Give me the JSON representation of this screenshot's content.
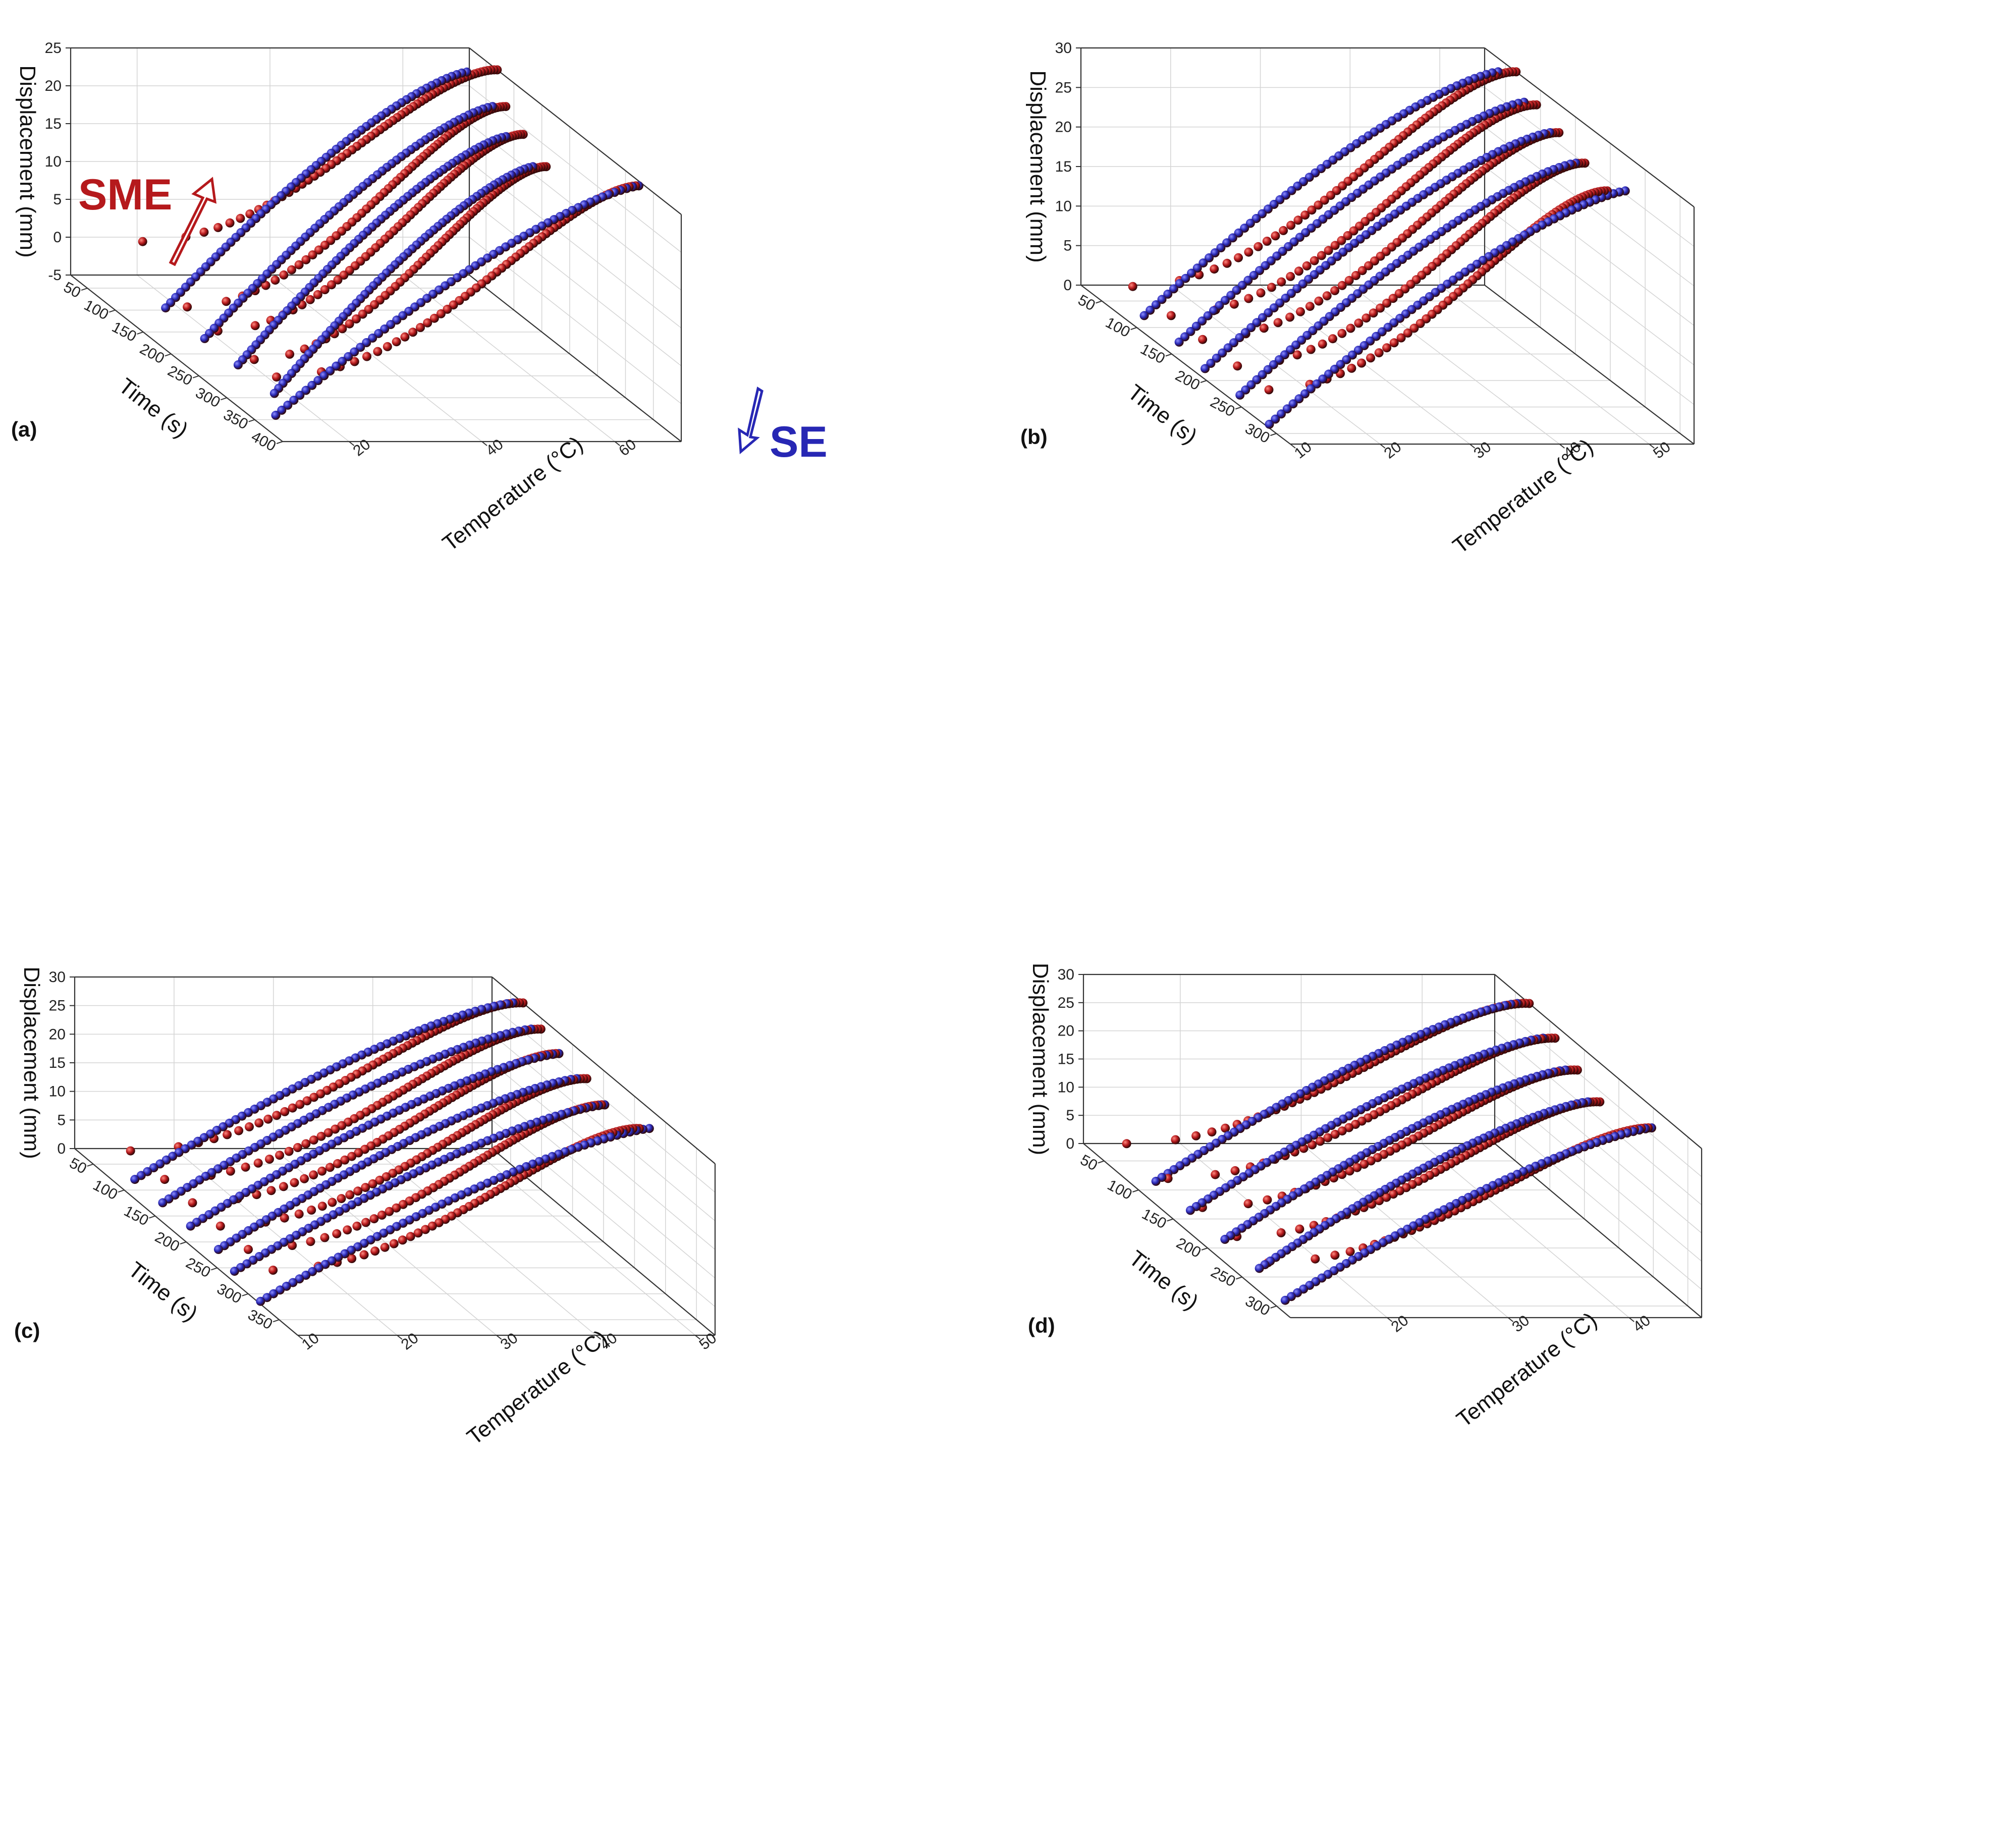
{
  "colors": {
    "sme": "#b5191c",
    "se": "#2727b4",
    "axis": "#222222",
    "grid": "#d4d4d4"
  },
  "chart_data": [
    {
      "type": "scatter",
      "panel_label": "(a)",
      "xlabel": "Time (s)",
      "ylabel": "Temperature (°C)",
      "zlabel": "Displacement (mm)",
      "xticks": [
        50,
        100,
        150,
        200,
        250,
        300,
        350,
        400
      ],
      "xlim": [
        20,
        400
      ],
      "yticks": [
        20,
        40,
        60
      ],
      "ylim": [
        10,
        70
      ],
      "zticks": [
        -5,
        0,
        5,
        10,
        15,
        20,
        25
      ],
      "zlim": [
        -5,
        25
      ],
      "annotations": [
        {
          "text": "SME",
          "color": "sme",
          "direction": "up"
        },
        {
          "text": "SE",
          "color": "se",
          "direction": "down"
        }
      ],
      "series": [
        {
          "name": "SME",
          "color": "sme",
          "cycles": [
            {
              "x": [
                30,
                70
              ],
              "y": [
                20,
                70
              ],
              "z": [
                0,
                25
              ]
            },
            {
              "x": [
                110,
                145
              ],
              "y": [
                20,
                65
              ],
              "z": [
                -4,
                24.5
              ]
            },
            {
              "x": [
                165,
                200
              ],
              "y": [
                20,
                63
              ],
              "z": [
                -4,
                24
              ]
            },
            {
              "x": [
                230,
                265
              ],
              "y": [
                20,
                61
              ],
              "z": [
                -4,
                23.5
              ]
            },
            {
              "x": [
                270,
                300
              ],
              "y": [
                20,
                72
              ],
              "z": [
                -4,
                23
              ]
            }
          ]
        },
        {
          "name": "SE",
          "color": "se",
          "cycles": [
            {
              "x": [
                75,
                95
              ],
              "y": [
                65,
                18
              ],
              "z": [
                25,
                -5
              ]
            },
            {
              "x": [
                145,
                165
              ],
              "y": [
                63,
                18
              ],
              "z": [
                24.5,
                -5
              ]
            },
            {
              "x": [
                205,
                225
              ],
              "y": [
                60,
                18
              ],
              "z": [
                24,
                -5
              ]
            },
            {
              "x": [
                265,
                290
              ],
              "y": [
                59,
                18
              ],
              "z": [
                23.5,
                -5
              ]
            },
            {
              "x": [
                300,
                340
              ],
              "y": [
                72,
                14
              ],
              "z": [
                23,
                -5
              ]
            }
          ]
        }
      ]
    },
    {
      "type": "scatter",
      "panel_label": "(b)",
      "xlabel": "Time (s)",
      "ylabel": "Temperature (°C)",
      "zlabel": "Displacement (mm)",
      "xticks": [
        50,
        100,
        150,
        200,
        250,
        300
      ],
      "xlim": [
        20,
        320
      ],
      "yticks": [
        10,
        20,
        30,
        40,
        50
      ],
      "ylim": [
        10,
        55
      ],
      "zticks": [
        0,
        5,
        10,
        15,
        20,
        25,
        30
      ],
      "zlim": [
        0,
        30
      ],
      "series": [
        {
          "name": "SME",
          "color": "sme",
          "cycles": [
            {
              "x": [
                30,
                65
              ],
              "y": [
                15,
                55
              ],
              "z": [
                0.5,
                30
              ]
            },
            {
              "x": [
                85,
                120
              ],
              "y": [
                15,
                53
              ],
              "z": [
                0.5,
                29.5
              ]
            },
            {
              "x": [
                130,
                165
              ],
              "y": [
                15,
                52
              ],
              "z": [
                0.5,
                29
              ]
            },
            {
              "x": [
                180,
                215
              ],
              "y": [
                15,
                51
              ],
              "z": [
                0.5,
                28.5
              ]
            },
            {
              "x": [
                225,
                260
              ],
              "y": [
                15,
                50
              ],
              "z": [
                0.5,
                28
              ]
            }
          ]
        },
        {
          "name": "SE",
          "color": "se",
          "cycles": [
            {
              "x": [
                65,
                85
              ],
              "y": [
                53,
                12
              ],
              "z": [
                30,
                0.5
              ]
            },
            {
              "x": [
                115,
                135
              ],
              "y": [
                52,
                12
              ],
              "z": [
                29.5,
                0.5
              ]
            },
            {
              "x": [
                165,
                185
              ],
              "y": [
                51,
                11
              ],
              "z": [
                29,
                0.5
              ]
            },
            {
              "x": [
                215,
                235
              ],
              "y": [
                50,
                11
              ],
              "z": [
                28.5,
                0.5
              ]
            },
            {
              "x": [
                260,
                290
              ],
              "y": [
                52,
                10
              ],
              "z": [
                28,
                0.5
              ]
            }
          ]
        }
      ]
    },
    {
      "type": "scatter",
      "panel_label": "(c)",
      "xlabel": "Time (s)",
      "ylabel": "Temperature (°C)",
      "zlabel": "Displacement (mm)",
      "xticks": [
        50,
        100,
        150,
        200,
        250,
        300,
        350
      ],
      "xlim": [
        20,
        380
      ],
      "yticks": [
        10,
        20,
        30,
        40,
        50
      ],
      "ylim": [
        10,
        52
      ],
      "zticks": [
        0,
        5,
        10,
        15,
        20,
        25,
        30
      ],
      "zlim": [
        0,
        30
      ],
      "series": [
        {
          "name": "SME",
          "color": "sme",
          "cycles": [
            {
              "x": [
                30,
                70
              ],
              "y": [
                15,
                52
              ],
              "z": [
                0.5,
                30
              ]
            },
            {
              "x": [
                85,
                115
              ],
              "y": [
                15,
                51
              ],
              "z": [
                0.5,
                29.5
              ]
            },
            {
              "x": [
                130,
                160
              ],
              "y": [
                15,
                50
              ],
              "z": [
                0.5,
                29.3
              ]
            },
            {
              "x": [
                175,
                205
              ],
              "y": [
                15,
                50
              ],
              "z": [
                0.5,
                29
              ]
            },
            {
              "x": [
                220,
                250
              ],
              "y": [
                15,
                49
              ],
              "z": [
                0.5,
                28.5
              ]
            },
            {
              "x": [
                260,
                290
              ],
              "y": [
                15,
                50
              ],
              "z": [
                0.5,
                28
              ]
            }
          ]
        },
        {
          "name": "SE",
          "color": "se",
          "cycles": [
            {
              "x": [
                70,
                85
              ],
              "y": [
                51,
                12
              ],
              "z": [
                30,
                0.5
              ]
            },
            {
              "x": [
                115,
                130
              ],
              "y": [
                50,
                12
              ],
              "z": [
                29.5,
                0.5
              ]
            },
            {
              "x": [
                160,
                175
              ],
              "y": [
                50,
                12
              ],
              "z": [
                29.3,
                0.5
              ]
            },
            {
              "x": [
                205,
                220
              ],
              "y": [
                49,
                12
              ],
              "z": [
                29,
                0.5
              ]
            },
            {
              "x": [
                250,
                262
              ],
              "y": [
                49,
                11
              ],
              "z": [
                28.5,
                0.5
              ]
            },
            {
              "x": [
                290,
                320
              ],
              "y": [
                51,
                10
              ],
              "z": [
                28,
                0.5
              ]
            }
          ]
        }
      ]
    },
    {
      "type": "scatter",
      "panel_label": "(d)",
      "xlabel": "Time (s)",
      "ylabel": "Temperature (°C)",
      "zlabel": "Displacement (mm)",
      "xticks": [
        50,
        100,
        150,
        200,
        250,
        300
      ],
      "xlim": [
        20,
        320
      ],
      "yticks": [
        20,
        30,
        40
      ],
      "ylim": [
        12,
        46
      ],
      "zticks": [
        0,
        5,
        10,
        15,
        20,
        25,
        30
      ],
      "zlim": [
        0,
        30
      ],
      "series": [
        {
          "name": "SME",
          "color": "sme",
          "cycles": [
            {
              "x": [
                30,
                70
              ],
              "y": [
                15,
                46
              ],
              "z": [
                1,
                30
              ]
            },
            {
              "x": [
                90,
                125
              ],
              "y": [
                15,
                45
              ],
              "z": [
                1,
                29.5
              ]
            },
            {
              "x": [
                140,
                175
              ],
              "y": [
                15,
                44
              ],
              "z": [
                1,
                29
              ]
            },
            {
              "x": [
                190,
                225
              ],
              "y": [
                15,
                43
              ],
              "z": [
                1,
                28.5
              ]
            },
            {
              "x": [
                235,
                265
              ],
              "y": [
                15,
                45
              ],
              "z": [
                1,
                28
              ]
            }
          ]
        },
        {
          "name": "SE",
          "color": "se",
          "cycles": [
            {
              "x": [
                70,
                90
              ],
              "y": [
                45,
                14
              ],
              "z": [
                30,
                0.5
              ]
            },
            {
              "x": [
                125,
                140
              ],
              "y": [
                44,
                14
              ],
              "z": [
                29.5,
                0.5
              ]
            },
            {
              "x": [
                175,
                190
              ],
              "y": [
                43,
                14
              ],
              "z": [
                29,
                0.5
              ]
            },
            {
              "x": [
                225,
                240
              ],
              "y": [
                42,
                14
              ],
              "z": [
                28.5,
                0.5
              ]
            },
            {
              "x": [
                265,
                295
              ],
              "y": [
                45,
                13
              ],
              "z": [
                28,
                0.5
              ]
            }
          ]
        }
      ]
    }
  ]
}
